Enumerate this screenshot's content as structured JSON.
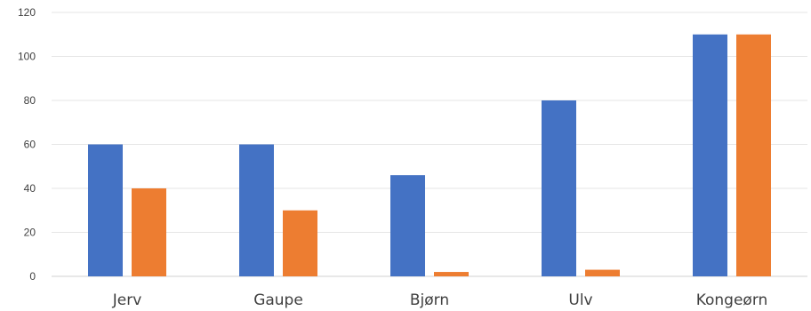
{
  "chart_data": {
    "type": "bar",
    "title": "",
    "xlabel": "",
    "ylabel": "",
    "categories": [
      "Jerv",
      "Gaupe",
      "Bjørn",
      "Ulv",
      "Kongeørn"
    ],
    "series": [
      {
        "values": [
          60,
          60,
          46,
          80,
          110
        ]
      },
      {
        "values": [
          40,
          30,
          2,
          3,
          110
        ]
      }
    ],
    "ylim": [
      0,
      120
    ],
    "yticks": [
      0,
      20,
      40,
      60,
      80,
      100,
      120
    ],
    "grid": true,
    "legend": "none",
    "colors": [
      "#4472c4",
      "#ed7d31"
    ]
  }
}
